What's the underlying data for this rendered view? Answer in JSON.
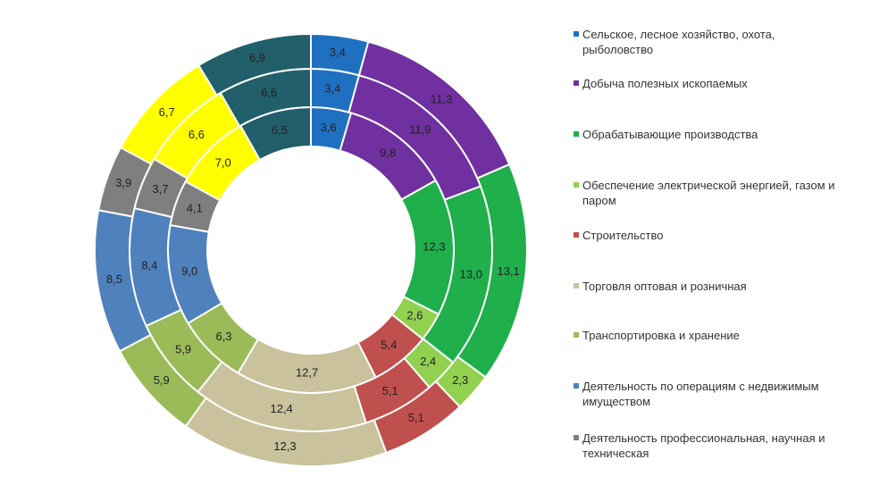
{
  "chart_data": {
    "type": "donut",
    "categories": [
      "Сельское, лесное хозяйство, охота, рыболовство",
      "Добыча полезных ископаемых",
      "Обрабатывающие производства",
      "Обеспечение электрической энергией, газом и паром",
      "Строительство",
      "Торговля оптовая и розничная",
      "Транспортировка и хранение",
      "Деятельность по операциям с недвижимым имуществом",
      "Деятельность профессиональная, научная и техническая",
      null,
      null
    ],
    "colors": [
      "#1f70c1",
      "#7030a0",
      "#1faf4b",
      "#92d050",
      "#c0504d",
      "#c9c29d",
      "#9bbb59",
      "#4f81bd",
      "#7f7f7f",
      "#ffff00",
      "#215f6b"
    ],
    "series": [
      {
        "values": [
          3.6,
          9.8,
          12.3,
          2.6,
          5.4,
          12.7,
          6.3,
          9.0,
          4.1,
          7.0,
          6.5
        ],
        "value_labels": [
          "3,6",
          "9,8",
          "12,3",
          "2,6",
          "5,4",
          "12,7",
          "6,3",
          "9,0",
          "4,1",
          "7,0",
          "6,5"
        ]
      },
      {
        "values": [
          3.4,
          11.9,
          13.0,
          2.4,
          5.1,
          12.4,
          5.9,
          8.4,
          3.7,
          6.6,
          6.6
        ],
        "value_labels": [
          "3,4",
          "11,9",
          "13,0",
          "2,4",
          "5,1",
          "12,4",
          "5,9",
          "8,4",
          "3,7",
          "6,6",
          "6,6"
        ]
      },
      {
        "values": [
          3.4,
          11.3,
          13.1,
          2.3,
          5.1,
          12.3,
          5.9,
          8.5,
          3.9,
          6.7,
          6.9
        ],
        "value_labels": [
          "3,4",
          "11,3",
          "13,1",
          "2,3",
          "5,1",
          "12,3",
          "5,9",
          "8,5",
          "3,9",
          "6,7",
          "6,9"
        ]
      }
    ]
  }
}
